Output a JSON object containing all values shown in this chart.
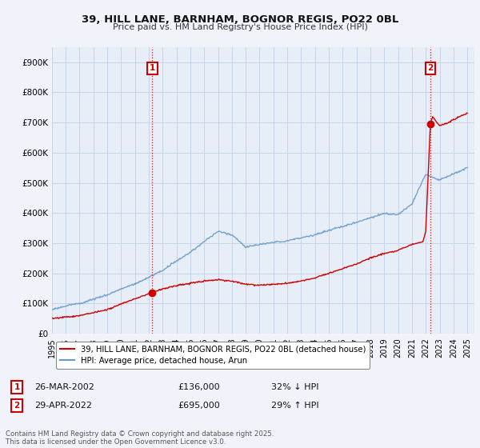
{
  "title": "39, HILL LANE, BARNHAM, BOGNOR REGIS, PO22 0BL",
  "subtitle": "Price paid vs. HM Land Registry's House Price Index (HPI)",
  "ylim": [
    0,
    950000
  ],
  "yticks": [
    0,
    100000,
    200000,
    300000,
    400000,
    500000,
    600000,
    700000,
    800000,
    900000
  ],
  "ytick_labels": [
    "£0",
    "£100K",
    "£200K",
    "£300K",
    "£400K",
    "£500K",
    "£600K",
    "£700K",
    "£800K",
    "£900K"
  ],
  "background_color": "#f0f4fa",
  "plot_bg_color": "#e8eef8",
  "grid_color": "#c8d4e8",
  "sale1_date": "26-MAR-2002",
  "sale1_price": "£136,000",
  "sale1_hpi": "32% ↓ HPI",
  "sale2_date": "29-APR-2022",
  "sale2_price": "£695,000",
  "sale2_hpi": "29% ↑ HPI",
  "legend_label_red": "39, HILL LANE, BARNHAM, BOGNOR REGIS, PO22 0BL (detached house)",
  "legend_label_blue": "HPI: Average price, detached house, Arun",
  "footer": "Contains HM Land Registry data © Crown copyright and database right 2025.\nThis data is licensed under the Open Government Licence v3.0.",
  "red_color": "#cc0000",
  "blue_color": "#6699cc",
  "marker1_x": 2002.25,
  "marker2_x": 2022.33,
  "marker1_y": 136000,
  "marker2_y": 695000,
  "vline1_x": 2002.25,
  "vline2_x": 2022.33,
  "xlim_left": 1995,
  "xlim_right": 2025.5
}
